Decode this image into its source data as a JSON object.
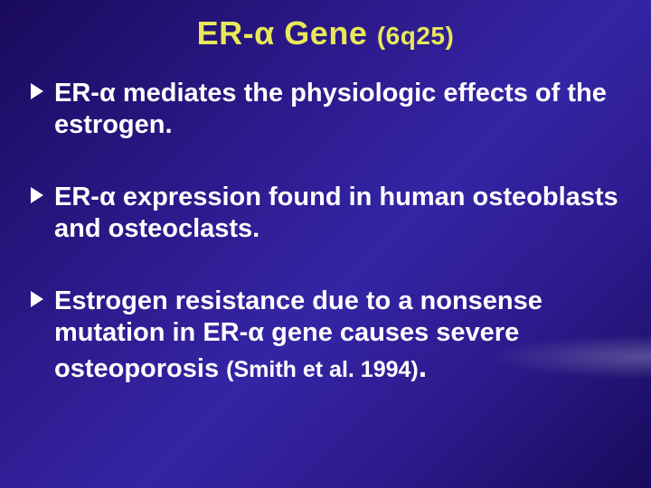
{
  "title": {
    "main": "ER-α Gene",
    "sub": "(6q25)"
  },
  "bullets": [
    {
      "text": "ER-α mediates the physiologic effects of the estrogen."
    },
    {
      "text": "ER-α expression found in human osteoblasts and osteoclasts."
    },
    {
      "text": "Estrogen resistance due to a nonsense mutation in ER-α gene causes severe osteoporosis",
      "citation": "(Smith et al. 1994)",
      "trailingPeriod": "."
    }
  ],
  "colors": {
    "title": "#e8e85a",
    "text": "#ffffff",
    "backgroundStart": "#1a0a5c",
    "backgroundMid": "#3525a5"
  },
  "typography": {
    "titleSize": 36,
    "subSize": 28,
    "bulletSize": 29,
    "citeSize": 25,
    "fontFamily": "Arial",
    "fontWeight": "bold"
  }
}
